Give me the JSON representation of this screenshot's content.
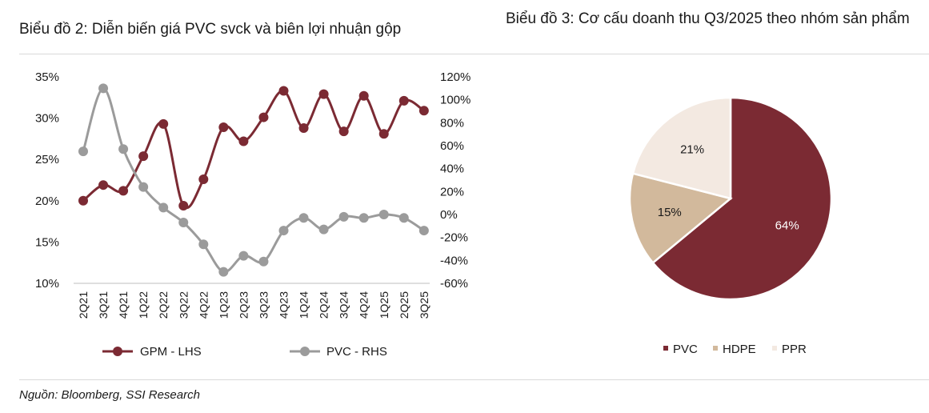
{
  "page": {
    "source": "Nguồn: Bloomberg, SSI Research"
  },
  "chart_data": [
    {
      "type": "line",
      "title": "Biểu đồ 2: Diễn biến giá PVC svck và biên lợi nhuận gộp",
      "categories": [
        "2Q21",
        "3Q21",
        "4Q21",
        "1Q22",
        "2Q22",
        "3Q22",
        "4Q22",
        "1Q23",
        "2Q23",
        "3Q23",
        "4Q23",
        "1Q24",
        "2Q24",
        "3Q24",
        "4Q24",
        "1Q25",
        "2Q25",
        "3Q25"
      ],
      "series": [
        {
          "name": "GPM - LHS",
          "axis": "left",
          "color": "#7b2a33",
          "values": [
            20.0,
            21.9,
            21.2,
            25.4,
            29.3,
            19.4,
            22.6,
            28.9,
            27.2,
            30.1,
            33.3,
            28.8,
            32.9,
            28.4,
            32.7,
            28.1,
            32.1,
            30.9
          ]
        },
        {
          "name": "PVC - RHS",
          "axis": "right",
          "color": "#9b9b9b",
          "values": [
            55,
            110,
            57,
            24,
            6,
            -7,
            -26,
            -50,
            -36,
            -41,
            -14,
            -3,
            -13,
            -2,
            -3,
            0,
            -3,
            -14
          ]
        }
      ],
      "yleft": {
        "min": 10,
        "max": 35,
        "ticks": [
          "10%",
          "15%",
          "20%",
          "25%",
          "30%",
          "35%"
        ]
      },
      "yright": {
        "min": -60,
        "max": 120,
        "ticks": [
          "-60%",
          "-40%",
          "-20%",
          "0%",
          "20%",
          "40%",
          "60%",
          "80%",
          "100%",
          "120%"
        ]
      },
      "legend": "bottom",
      "grid": false
    },
    {
      "type": "pie",
      "title": "Biểu đồ 3: Cơ cấu doanh thu Q3/2025 theo nhóm sản phẩm",
      "slices": [
        {
          "name": "PVC",
          "value": 64,
          "label": "64%",
          "color": "#7b2a33"
        },
        {
          "name": "HDPE",
          "value": 15,
          "label": "15%",
          "color": "#d2b99c"
        },
        {
          "name": "PPR",
          "value": 21,
          "label": "21%",
          "color": "#f3e9e1"
        }
      ],
      "legend": "bottom"
    }
  ]
}
